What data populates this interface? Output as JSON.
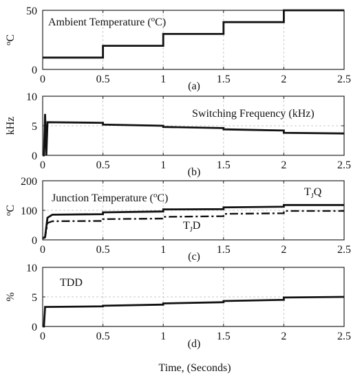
{
  "chart_data": [
    {
      "type": "line",
      "panel_label": "(a)",
      "ylabel": "oC",
      "ylabel_sup": "o",
      "ylabel_main": "C",
      "annotation": "Ambient Temperature (oC)",
      "annotation_parts": [
        "Ambient Temperature (",
        "o",
        "C)"
      ],
      "xlim": [
        0,
        2.5
      ],
      "ylim": [
        0,
        50
      ],
      "x_ticks": [
        "0",
        "0.5",
        "1",
        "1.5",
        "2",
        "2.5"
      ],
      "y_ticks": [
        "0",
        "50"
      ],
      "grid": true,
      "series": [
        {
          "x": [
            0,
            0.5,
            0.5,
            1.0,
            1.0,
            1.5,
            1.5,
            2.0,
            2.0,
            2.5
          ],
          "y": [
            10,
            10,
            20,
            20,
            30,
            30,
            40,
            40,
            50,
            50
          ],
          "style": "solid"
        }
      ]
    },
    {
      "type": "line",
      "panel_label": "(b)",
      "ylabel": "kHz",
      "annotation": "Switching Frequency (kHz)",
      "xlim": [
        0,
        2.5
      ],
      "ylim": [
        0,
        10
      ],
      "x_ticks": [
        "0",
        "0.5",
        "1",
        "1.5",
        "2",
        "2.5"
      ],
      "y_ticks": [
        "0",
        "5",
        "10"
      ],
      "grid": true,
      "series": [
        {
          "x": [
            0,
            0.01,
            0.02,
            0.03,
            0.04,
            0.5,
            0.5,
            1.0,
            1.0,
            1.5,
            1.5,
            2.0,
            2.0,
            2.5
          ],
          "y": [
            0,
            0,
            7,
            0,
            5.6,
            5.5,
            5.2,
            5.0,
            4.8,
            4.6,
            4.4,
            4.2,
            3.8,
            3.7
          ],
          "style": "solid"
        }
      ]
    },
    {
      "type": "line",
      "panel_label": "(c)",
      "ylabel": "oC",
      "ylabel_sup": "o",
      "ylabel_main": "C",
      "annotation": "Junction Temperature (oC)",
      "annotation_parts": [
        "Junction Temperature (",
        "o",
        "C)"
      ],
      "xlim": [
        0,
        2.5
      ],
      "ylim": [
        0,
        200
      ],
      "x_ticks": [
        "0",
        "0.5",
        "1",
        "1.5",
        "2",
        "2.5"
      ],
      "y_ticks": [
        "0",
        "100",
        "200"
      ],
      "grid": true,
      "series": [
        {
          "name": "TJQ",
          "name_parts": [
            "T",
            "J",
            "Q"
          ],
          "style": "solid",
          "x": [
            0,
            0.02,
            0.04,
            0.08,
            0.5,
            0.5,
            1.0,
            1.0,
            1.5,
            1.5,
            2.0,
            2.0,
            2.5
          ],
          "y": [
            5,
            10,
            75,
            85,
            87,
            93,
            96,
            103,
            104,
            110,
            112,
            118,
            118
          ]
        },
        {
          "name": "TJD",
          "name_parts": [
            "T",
            "J",
            "D"
          ],
          "style": "dashdot",
          "x": [
            0,
            0.02,
            0.04,
            0.08,
            0.5,
            0.5,
            1.0,
            1.0,
            1.5,
            1.5,
            2.0,
            2.0,
            2.5
          ],
          "y": [
            5,
            8,
            57,
            63,
            64,
            70,
            72,
            78,
            80,
            88,
            90,
            98,
            98
          ]
        }
      ]
    },
    {
      "type": "line",
      "panel_label": "(d)",
      "ylabel": "%",
      "annotation": "TDD",
      "xlim": [
        0,
        2.5
      ],
      "ylim": [
        0,
        10
      ],
      "x_ticks": [
        "0",
        "0.5",
        "1",
        "1.5",
        "2",
        "2.5"
      ],
      "y_ticks": [
        "0",
        "5",
        "10"
      ],
      "grid": true,
      "series": [
        {
          "x": [
            0,
            0.01,
            0.02,
            0.5,
            0.5,
            1.0,
            1.0,
            1.5,
            1.5,
            2.0,
            2.0,
            2.5
          ],
          "y": [
            0,
            0,
            3.3,
            3.4,
            3.5,
            3.7,
            3.9,
            4.1,
            4.3,
            4.5,
            4.9,
            5.0
          ],
          "style": "solid"
        }
      ]
    }
  ],
  "xlabel": "Time, (Seconds)"
}
